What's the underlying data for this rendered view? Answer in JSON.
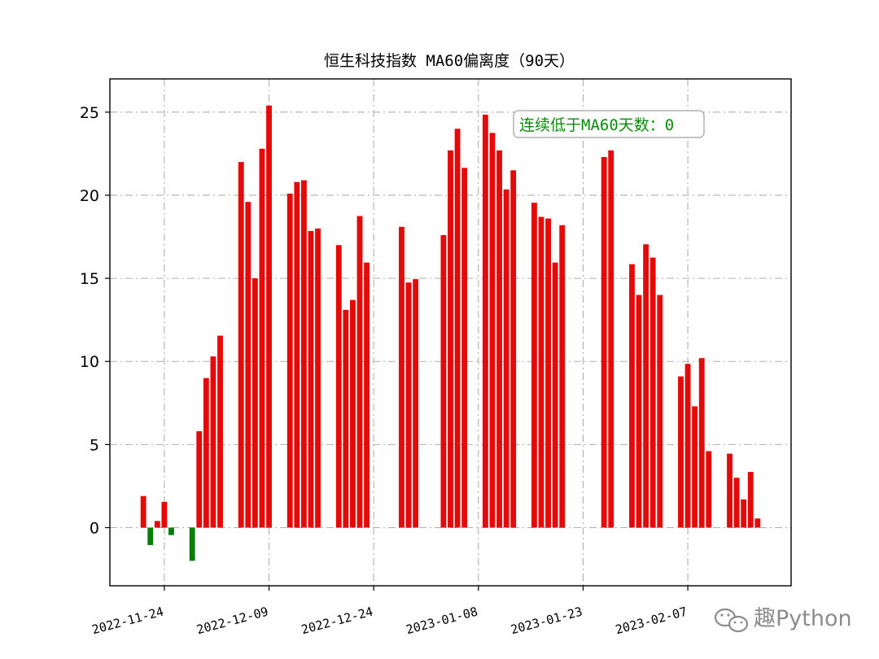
{
  "chart_data": {
    "type": "bar",
    "title": "恒生科技指数 MA60偏离度（90天）",
    "xlabel": "",
    "ylabel": "",
    "ylim": [
      -3.5,
      27
    ],
    "yticks": [
      0,
      5,
      10,
      15,
      20,
      25
    ],
    "xticks": [
      "2022-11-24",
      "2022-12-09",
      "2022-12-24",
      "2023-01-08",
      "2023-01-23",
      "2023-02-07"
    ],
    "grid": true,
    "positive_color": "#e50a0a",
    "negative_color": "#0a7d0a",
    "series": [
      {
        "x": [
          "2022-11-21",
          "2022-11-22",
          "2022-11-23",
          "2022-11-24",
          "2022-11-25",
          "2022-11-28",
          "2022-11-29",
          "2022-11-30",
          "2022-12-01",
          "2022-12-02",
          "2022-12-05",
          "2022-12-06",
          "2022-12-07",
          "2022-12-08",
          "2022-12-09",
          "2022-12-12",
          "2022-12-13",
          "2022-12-14",
          "2022-12-15",
          "2022-12-16",
          "2022-12-19",
          "2022-12-20",
          "2022-12-21",
          "2022-12-22",
          "2022-12-23",
          "2022-12-28",
          "2022-12-29",
          "2022-12-30",
          "2023-01-03",
          "2023-01-04",
          "2023-01-05",
          "2023-01-06",
          "2023-01-09",
          "2023-01-10",
          "2023-01-11",
          "2023-01-12",
          "2023-01-13",
          "2023-01-16",
          "2023-01-17",
          "2023-01-18",
          "2023-01-19",
          "2023-01-20",
          "2023-01-26",
          "2023-01-27",
          "2023-01-30",
          "2023-01-31",
          "2023-02-01",
          "2023-02-02",
          "2023-02-03",
          "2023-02-06",
          "2023-02-07",
          "2023-02-08",
          "2023-02-09",
          "2023-02-10",
          "2023-02-13",
          "2023-02-14",
          "2023-02-15",
          "2023-02-16",
          "2023-02-17"
        ],
        "values": [
          1.9,
          -1.05,
          0.4,
          1.55,
          -0.45,
          -2.0,
          5.8,
          9.0,
          10.3,
          11.55,
          22.0,
          19.6,
          15.0,
          22.8,
          25.4,
          20.1,
          20.8,
          20.9,
          17.85,
          18.0,
          17.0,
          13.1,
          13.7,
          18.75,
          15.95,
          18.1,
          14.75,
          14.95,
          17.6,
          22.7,
          24.0,
          21.65,
          24.85,
          23.75,
          22.7,
          20.35,
          21.5,
          19.55,
          18.7,
          18.6,
          15.95,
          18.2,
          22.3,
          22.7,
          15.85,
          14.0,
          17.05,
          16.25,
          14.0,
          9.1,
          9.85,
          7.3,
          10.2,
          4.6,
          4.45,
          3.0,
          1.7,
          3.35,
          0.55
        ]
      }
    ]
  },
  "annotation": {
    "label": "连续低于MA60天数：",
    "value": "0",
    "color": "#0a8c0a"
  },
  "watermark": {
    "text": "趣Python",
    "icon": "wechat-icon"
  }
}
